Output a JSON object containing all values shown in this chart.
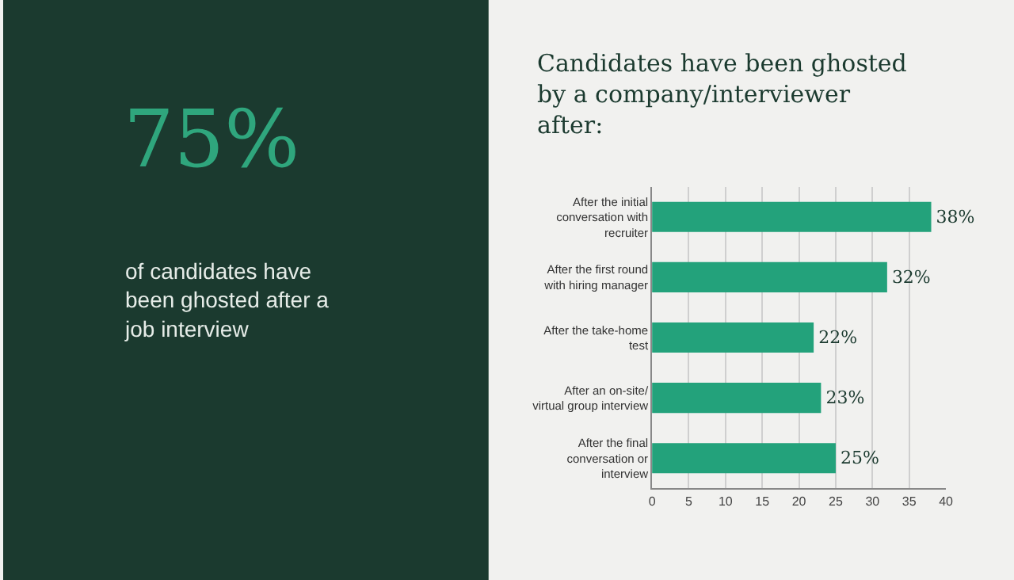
{
  "chart_data": [
    {
      "type": "other",
      "title": "75%",
      "annotations": [
        "of candidates have been ghosted after a job interview"
      ]
    },
    {
      "type": "bar",
      "orientation": "horizontal",
      "title": "Candidates have been ghosted by a company/interviewer after:",
      "categories": [
        "After the initial conversation with recruiter",
        "After the first round with hiring manager",
        "After the take-home test",
        "After an on-site/ virtual group interview",
        "After the final conversation or interview"
      ],
      "values": [
        38,
        32,
        22,
        23,
        25
      ],
      "value_labels": [
        "38%",
        "32%",
        "22%",
        "23%",
        "25%"
      ],
      "color": "#23a27b",
      "xlim": [
        0,
        40
      ],
      "xticks": [
        0,
        5,
        10,
        15,
        20,
        25,
        30,
        35,
        40
      ],
      "grid": "x"
    }
  ]
}
